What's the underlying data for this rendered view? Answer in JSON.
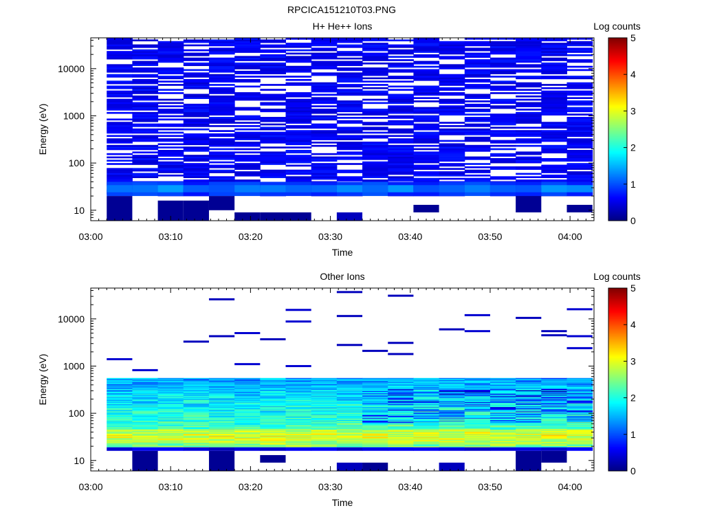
{
  "figure_title": "RPCICA151210T03.PNG",
  "colormap_stops": [
    "#000080",
    "#0000ff",
    "#0080ff",
    "#00ffff",
    "#80ff80",
    "#ffff00",
    "#ff8000",
    "#ff0000",
    "#800000"
  ],
  "chart_data": [
    {
      "type": "heatmap",
      "title": "H+ He++ Ions",
      "xlabel": "Time",
      "ylabel": "Energy (eV)",
      "colorbar_label": "Log counts",
      "colorbar_ticks": [
        "0",
        "1",
        "2",
        "3",
        "4",
        "5"
      ],
      "zlim": [
        0,
        5
      ],
      "x_ticks": [
        "03:00",
        "03:10",
        "03:20",
        "03:30",
        "03:40",
        "03:50",
        "04:00"
      ],
      "xlim_min": [
        0,
        63
      ],
      "y_scale": "log",
      "y_ticks": [
        10,
        100,
        1000,
        10000
      ],
      "y_tick_labels": [
        "10",
        "100",
        "1000",
        "10000"
      ],
      "ylim": [
        6,
        45000
      ],
      "grid": false,
      "columns_start_min": [
        2,
        5.2,
        8.4,
        11.6,
        14.8,
        18,
        21.2,
        24.4,
        27.6,
        30.8,
        34,
        37.2,
        40.4,
        43.6,
        46.8,
        50,
        53.2,
        56.4,
        59.6
      ],
      "column_width_min": 3.2,
      "ion_band": {
        "min_eV": 20,
        "max_eV": 45000,
        "background": 0.4,
        "hole_probability": 0.33,
        "seed": 7
      },
      "features": [
        {
          "from_eV": 20,
          "to_eV": 40,
          "value": 0.9
        },
        {
          "from_eV": 24,
          "to_eV": 34,
          "value": 1.2
        }
      ],
      "low_energy_cells": [
        {
          "col": 0,
          "from_eV": 6,
          "to_eV": 20,
          "value": 0.1
        },
        {
          "col": 2,
          "from_eV": 6,
          "to_eV": 16,
          "value": 0.1
        },
        {
          "col": 3,
          "from_eV": 6,
          "to_eV": 16,
          "value": 0.1
        },
        {
          "col": 4,
          "from_eV": 10,
          "to_eV": 20,
          "value": 0.1
        },
        {
          "col": 5,
          "from_eV": 6,
          "to_eV": 9,
          "value": 0.1
        },
        {
          "col": 6,
          "from_eV": 6,
          "to_eV": 9,
          "value": 0.1
        },
        {
          "col": 7,
          "from_eV": 6,
          "to_eV": 9,
          "value": 0.1
        },
        {
          "col": 9,
          "from_eV": 6,
          "to_eV": 9,
          "value": 0.3
        },
        {
          "col": 12,
          "from_eV": 9,
          "to_eV": 13,
          "value": 0.1
        },
        {
          "col": 16,
          "from_eV": 9,
          "to_eV": 20,
          "value": 0.1
        },
        {
          "col": 18,
          "from_eV": 9,
          "to_eV": 13,
          "value": 0.1
        }
      ]
    },
    {
      "type": "heatmap",
      "title": "Other Ions",
      "xlabel": "Time",
      "ylabel": "Energy (eV)",
      "colorbar_label": "Log counts",
      "colorbar_ticks": [
        "0",
        "1",
        "2",
        "3",
        "4",
        "5"
      ],
      "zlim": [
        0,
        5
      ],
      "x_ticks": [
        "03:00",
        "03:10",
        "03:20",
        "03:30",
        "03:40",
        "03:50",
        "04:00"
      ],
      "xlim_min": [
        0,
        63
      ],
      "y_scale": "log",
      "y_ticks": [
        10,
        100,
        1000,
        10000
      ],
      "y_tick_labels": [
        "10",
        "100",
        "1000",
        "10000"
      ],
      "ylim": [
        6,
        45000
      ],
      "grid": false,
      "columns_start_min": [
        2,
        5.2,
        8.4,
        11.6,
        14.8,
        18,
        21.2,
        24.4,
        27.6,
        30.8,
        34,
        37.2,
        40.4,
        43.6,
        46.8,
        50,
        53.2,
        56.4,
        59.6
      ],
      "column_width_min": 3.2,
      "ion_band": {
        "min_eV": 19,
        "max_eV": 560,
        "low_eV": 19,
        "low_value": 2.5,
        "high_eV": 560,
        "high_value": 1.4,
        "peak_eV": 32,
        "peak_value": 3.0,
        "seed": 21
      },
      "features": [
        {
          "from_eV": 16,
          "to_eV": 19,
          "value": 0.5
        }
      ],
      "sparse_lines": [
        {
          "col": 0,
          "eV": 1400,
          "value": 0.4
        },
        {
          "col": 1,
          "eV": 820,
          "value": 0.4
        },
        {
          "col": 3,
          "eV": 3300,
          "value": 0.3
        },
        {
          "col": 4,
          "eV": 26000,
          "value": 0.3
        },
        {
          "col": 4,
          "eV": 4300,
          "value": 0.3
        },
        {
          "col": 5,
          "eV": 5000,
          "value": 0.4
        },
        {
          "col": 5,
          "eV": 1100,
          "value": 0.4
        },
        {
          "col": 6,
          "eV": 3700,
          "value": 0.3
        },
        {
          "col": 7,
          "eV": 15500,
          "value": 0.4
        },
        {
          "col": 7,
          "eV": 8800,
          "value": 0.4
        },
        {
          "col": 7,
          "eV": 1000,
          "value": 0.4
        },
        {
          "col": 9,
          "eV": 37000,
          "value": 0.3
        },
        {
          "col": 9,
          "eV": 11500,
          "value": 0.3
        },
        {
          "col": 9,
          "eV": 2800,
          "value": 0.3
        },
        {
          "col": 10,
          "eV": 2100,
          "value": 0.3
        },
        {
          "col": 11,
          "eV": 31000,
          "value": 0.3
        },
        {
          "col": 11,
          "eV": 3100,
          "value": 0.3
        },
        {
          "col": 11,
          "eV": 1800,
          "value": 0.3
        },
        {
          "col": 13,
          "eV": 6000,
          "value": 0.3
        },
        {
          "col": 14,
          "eV": 12000,
          "value": 0.4
        },
        {
          "col": 14,
          "eV": 5500,
          "value": 0.4
        },
        {
          "col": 16,
          "eV": 10500,
          "value": 0.3
        },
        {
          "col": 17,
          "eV": 5500,
          "value": 0.3
        },
        {
          "col": 17,
          "eV": 4500,
          "value": 0.3
        },
        {
          "col": 18,
          "eV": 16000,
          "value": 0.4
        },
        {
          "col": 18,
          "eV": 4300,
          "value": 0.4
        },
        {
          "col": 18,
          "eV": 2400,
          "value": 0.4
        }
      ],
      "low_energy_cells": [
        {
          "col": 1,
          "from_eV": 6,
          "to_eV": 16,
          "value": 0.1
        },
        {
          "col": 4,
          "from_eV": 6,
          "to_eV": 16,
          "value": 0.1
        },
        {
          "col": 6,
          "from_eV": 9,
          "to_eV": 13,
          "value": 0.1
        },
        {
          "col": 9,
          "from_eV": 6,
          "to_eV": 9,
          "value": 0.3
        },
        {
          "col": 10,
          "from_eV": 6,
          "to_eV": 9,
          "value": 0.1
        },
        {
          "col": 13,
          "from_eV": 6,
          "to_eV": 9,
          "value": 0.3
        },
        {
          "col": 16,
          "from_eV": 6,
          "to_eV": 16,
          "value": 0.1
        },
        {
          "col": 17,
          "from_eV": 9,
          "to_eV": 16,
          "value": 0.1
        }
      ]
    }
  ]
}
